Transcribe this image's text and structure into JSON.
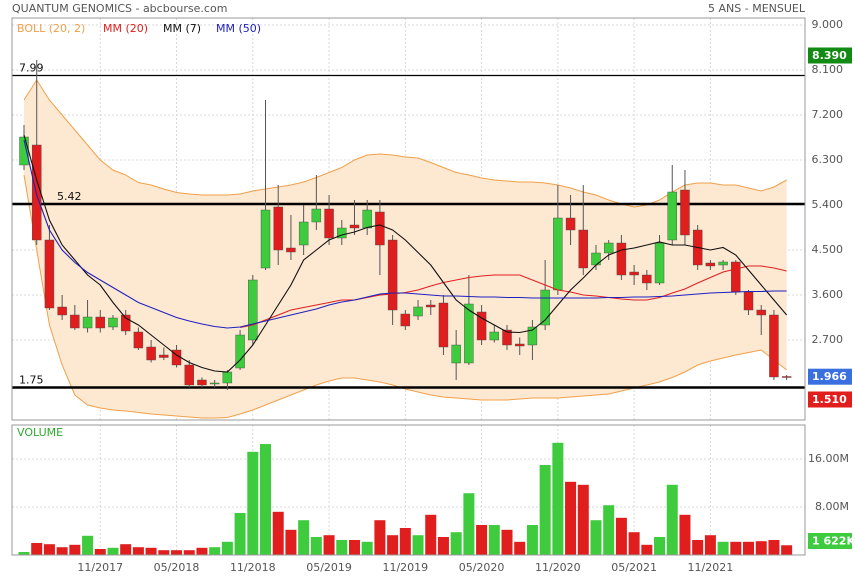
{
  "chart_data": {
    "type": "candlestick",
    "title": "QUANTUM GENOMICS - abcbourse.com",
    "subtitle": "5 ANS - MENSUEL",
    "categories": [
      null,
      null,
      null,
      null,
      null,
      null,
      "11/2017",
      null,
      null,
      null,
      null,
      null,
      "05/2018",
      null,
      null,
      null,
      null,
      null,
      "11/2018",
      null,
      null,
      null,
      null,
      null,
      "05/2019",
      null,
      null,
      null,
      null,
      null,
      "11/2019",
      null,
      null,
      null,
      null,
      null,
      "05/2020",
      null,
      null,
      null,
      null,
      null,
      "11/2020",
      null,
      null,
      null,
      null,
      null,
      "05/2021",
      null,
      null,
      null,
      null,
      null,
      "11/2021",
      null,
      null,
      null,
      null,
      null,
      null
    ],
    "open": [
      6.2,
      6.6,
      4.7,
      3.36,
      3.2,
      2.94,
      3.16,
      2.96,
      3.2,
      2.86,
      2.56,
      2.4,
      2.5,
      2.2,
      1.9,
      1.82,
      1.84,
      2.14,
      2.7,
      4.14,
      5.36,
      4.54,
      4.6,
      5.06,
      5.32,
      4.74,
      5.0,
      4.94,
      5.26,
      4.7,
      3.22,
      3.18,
      3.4,
      3.44,
      2.24,
      2.24,
      3.26,
      2.7,
      2.9,
      2.62,
      2.6,
      3.0,
      3.7,
      5.14,
      4.9,
      4.2,
      4.44,
      4.64,
      4.06,
      4.0,
      3.84,
      4.7,
      5.7,
      4.9,
      4.24,
      4.2,
      4.26,
      3.66,
      3.3,
      3.2,
      1.97
    ],
    "high": [
      7.0,
      8.3,
      5.0,
      3.6,
      3.4,
      3.5,
      3.3,
      3.2,
      3.3,
      2.95,
      2.7,
      2.55,
      2.6,
      2.3,
      1.95,
      1.9,
      2.1,
      2.9,
      4.0,
      7.5,
      5.8,
      5.2,
      5.4,
      6.0,
      5.6,
      5.1,
      5.5,
      5.5,
      5.5,
      4.8,
      3.3,
      3.5,
      3.5,
      3.6,
      2.9,
      4.0,
      3.4,
      3.0,
      3.0,
      2.75,
      3.1,
      4.3,
      5.8,
      5.6,
      5.8,
      4.6,
      4.7,
      4.8,
      4.2,
      4.1,
      4.8,
      6.2,
      6.1,
      5.0,
      4.3,
      4.3,
      4.3,
      3.7,
      3.4,
      3.3,
      2.0
    ],
    "low": [
      6.1,
      4.6,
      3.3,
      3.1,
      2.9,
      2.85,
      2.85,
      2.9,
      2.8,
      2.5,
      2.25,
      2.3,
      2.15,
      1.75,
      1.75,
      1.75,
      1.7,
      2.1,
      2.6,
      4.1,
      4.2,
      4.3,
      4.4,
      4.9,
      4.6,
      4.6,
      4.8,
      4.8,
      4.0,
      3.0,
      2.9,
      3.1,
      3.2,
      2.4,
      1.9,
      2.2,
      2.6,
      2.65,
      2.5,
      2.4,
      2.3,
      2.9,
      3.6,
      4.6,
      4.0,
      4.1,
      4.3,
      3.9,
      3.8,
      3.7,
      3.8,
      4.6,
      4.6,
      4.1,
      4.1,
      4.1,
      3.6,
      3.2,
      2.8,
      1.9,
      1.9
    ],
    "close": [
      6.76,
      4.7,
      3.34,
      3.2,
      2.94,
      3.16,
      2.94,
      3.14,
      2.88,
      2.54,
      2.3,
      2.35,
      2.2,
      1.8,
      1.8,
      1.84,
      2.06,
      2.8,
      3.9,
      5.3,
      4.5,
      4.46,
      5.06,
      5.32,
      4.74,
      4.94,
      4.94,
      5.3,
      4.6,
      3.3,
      2.98,
      3.36,
      3.36,
      2.56,
      2.6,
      3.42,
      2.7,
      2.86,
      2.6,
      2.58,
      2.96,
      3.7,
      5.14,
      4.9,
      4.14,
      4.44,
      4.64,
      4.0,
      4.0,
      3.84,
      4.64,
      5.66,
      4.8,
      4.2,
      4.18,
      4.26,
      3.66,
      3.3,
      3.2,
      1.96,
      1.966
    ],
    "up_color": "#3ecb3e",
    "down_color": "#e01e1e",
    "series": [
      {
        "name": "BOLL (20, 2)",
        "color": "#f0a04a",
        "fill": "#fde8d2",
        "upper": [
          7.5,
          7.9,
          7.5,
          7.2,
          6.9,
          6.6,
          6.3,
          6.1,
          6.0,
          5.85,
          5.8,
          5.72,
          5.65,
          5.62,
          5.6,
          5.6,
          5.6,
          5.62,
          5.68,
          5.72,
          5.76,
          5.8,
          5.86,
          5.95,
          6.05,
          6.15,
          6.3,
          6.4,
          6.42,
          6.4,
          6.36,
          6.34,
          6.25,
          6.15,
          6.05,
          6.0,
          5.94,
          5.9,
          5.88,
          5.86,
          5.86,
          5.84,
          5.8,
          5.74,
          5.66,
          5.6,
          5.5,
          5.42,
          5.36,
          5.4,
          5.5,
          5.66,
          5.8,
          5.84,
          5.84,
          5.8,
          5.8,
          5.74,
          5.68,
          5.76,
          5.9
        ],
        "lower": [
          6.0,
          4.5,
          3.0,
          2.2,
          1.6,
          1.4,
          1.34,
          1.3,
          1.28,
          1.25,
          1.22,
          1.2,
          1.18,
          1.16,
          1.14,
          1.14,
          1.15,
          1.22,
          1.3,
          1.4,
          1.5,
          1.6,
          1.7,
          1.8,
          1.88,
          1.94,
          1.94,
          1.9,
          1.86,
          1.8,
          1.72,
          1.66,
          1.6,
          1.56,
          1.54,
          1.52,
          1.5,
          1.5,
          1.5,
          1.52,
          1.54,
          1.54,
          1.54,
          1.56,
          1.58,
          1.6,
          1.62,
          1.68,
          1.74,
          1.8,
          1.86,
          1.95,
          2.06,
          2.2,
          2.28,
          2.34,
          2.4,
          2.45,
          2.5,
          2.3,
          2.1
        ]
      },
      {
        "name": "MM (20)",
        "color": "#e02020",
        "values": [
          null,
          null,
          null,
          null,
          null,
          null,
          null,
          null,
          null,
          null,
          null,
          null,
          null,
          null,
          null,
          null,
          null,
          2.95,
          3.0,
          3.1,
          3.2,
          3.3,
          3.35,
          3.4,
          3.45,
          3.5,
          3.5,
          3.55,
          3.6,
          3.62,
          3.65,
          3.7,
          3.78,
          3.85,
          3.9,
          3.95,
          3.98,
          4.0,
          4.0,
          4.0,
          3.9,
          3.8,
          3.7,
          3.66,
          3.6,
          3.58,
          3.55,
          3.52,
          3.5,
          3.5,
          3.55,
          3.64,
          3.72,
          3.84,
          3.95,
          4.06,
          4.12,
          4.18,
          4.18,
          4.14,
          4.08
        ]
      },
      {
        "name": "MM (7)",
        "color": "#111111",
        "values": [
          6.8,
          5.9,
          5.1,
          4.6,
          4.3,
          4.0,
          3.8,
          3.45,
          3.14,
          3.0,
          2.8,
          2.6,
          2.4,
          2.25,
          2.15,
          2.08,
          2.06,
          2.3,
          2.6,
          3.0,
          3.4,
          3.8,
          4.3,
          4.5,
          4.7,
          4.8,
          4.86,
          4.95,
          5.0,
          4.9,
          4.7,
          4.45,
          4.2,
          3.85,
          3.5,
          3.3,
          3.14,
          3.0,
          2.86,
          2.85,
          2.9,
          3.1,
          3.4,
          3.7,
          3.94,
          4.2,
          4.4,
          4.5,
          4.54,
          4.6,
          4.66,
          4.6,
          4.6,
          4.55,
          4.5,
          4.55,
          4.4,
          4.1,
          3.8,
          3.5,
          3.2
        ]
      },
      {
        "name": "MM (50)",
        "color": "#2020c0",
        "values": [
          6.7,
          5.6,
          4.9,
          4.5,
          4.25,
          4.05,
          3.9,
          3.75,
          3.6,
          3.45,
          3.35,
          3.25,
          3.15,
          3.08,
          3.02,
          2.97,
          2.94,
          2.96,
          3.02,
          3.08,
          3.14,
          3.2,
          3.26,
          3.32,
          3.4,
          3.46,
          3.5,
          3.56,
          3.62,
          3.64,
          3.64,
          3.62,
          3.6,
          3.58,
          3.58,
          3.57,
          3.56,
          3.56,
          3.55,
          3.55,
          3.54,
          3.54,
          3.54,
          3.54,
          3.54,
          3.54,
          3.55,
          3.55,
          3.56,
          3.56,
          3.57,
          3.58,
          3.6,
          3.62,
          3.64,
          3.65,
          3.66,
          3.67,
          3.67,
          3.68,
          3.68
        ]
      }
    ],
    "levels": [
      7.99,
      5.42,
      1.75
    ],
    "markers": [
      {
        "value": 8.39,
        "label": "8.390",
        "color": "#138a13"
      },
      {
        "value": 1.966,
        "label": "1.966",
        "color": "#3a6fe0"
      },
      {
        "value": 1.51,
        "label": "1.510",
        "color": "#e01e1e"
      }
    ],
    "ylim": [
      1.1,
      9.14
    ],
    "yticks": [
      {
        "value": 9,
        "label": "9.000"
      },
      {
        "value": 8.1,
        "label": "8.100"
      },
      {
        "value": 7.2,
        "label": "7.200"
      },
      {
        "value": 6.3,
        "label": "6.300"
      },
      {
        "value": 5.4,
        "label": "5.400"
      },
      {
        "value": 4.5,
        "label": "4.500"
      },
      {
        "value": 3.6,
        "label": "3.600"
      },
      {
        "value": 2.7,
        "label": "2.700"
      }
    ],
    "grid": true,
    "volume": {
      "title": "VOLUME",
      "values": [
        0.5,
        2.0,
        1.8,
        1.3,
        1.7,
        3.2,
        1.0,
        1.2,
        1.8,
        1.3,
        1.2,
        0.8,
        0.8,
        0.8,
        1.2,
        1.3,
        2.2,
        7.0,
        17.2,
        18.5,
        7.2,
        4.2,
        5.8,
        3.0,
        3.3,
        2.5,
        2.5,
        2.2,
        5.8,
        3.3,
        4.5,
        3.3,
        6.7,
        3.0,
        3.8,
        10.3,
        5.0,
        5.0,
        4.2,
        2.2,
        5.0,
        15.0,
        18.7,
        12.2,
        11.7,
        5.8,
        8.3,
        6.2,
        3.8,
        1.7,
        3.0,
        11.7,
        6.7,
        2.5,
        3.3,
        2.2,
        2.2,
        2.2,
        2.3,
        2.5,
        1.622
      ],
      "ylim": [
        0,
        21.67
      ],
      "yticks": [
        {
          "value": 16,
          "label": "16.00M"
        },
        {
          "value": 8,
          "label": "8.00M"
        }
      ],
      "marker": {
        "value": 1.622,
        "label": "1 622K",
        "color": "#3ecb3e"
      }
    }
  }
}
